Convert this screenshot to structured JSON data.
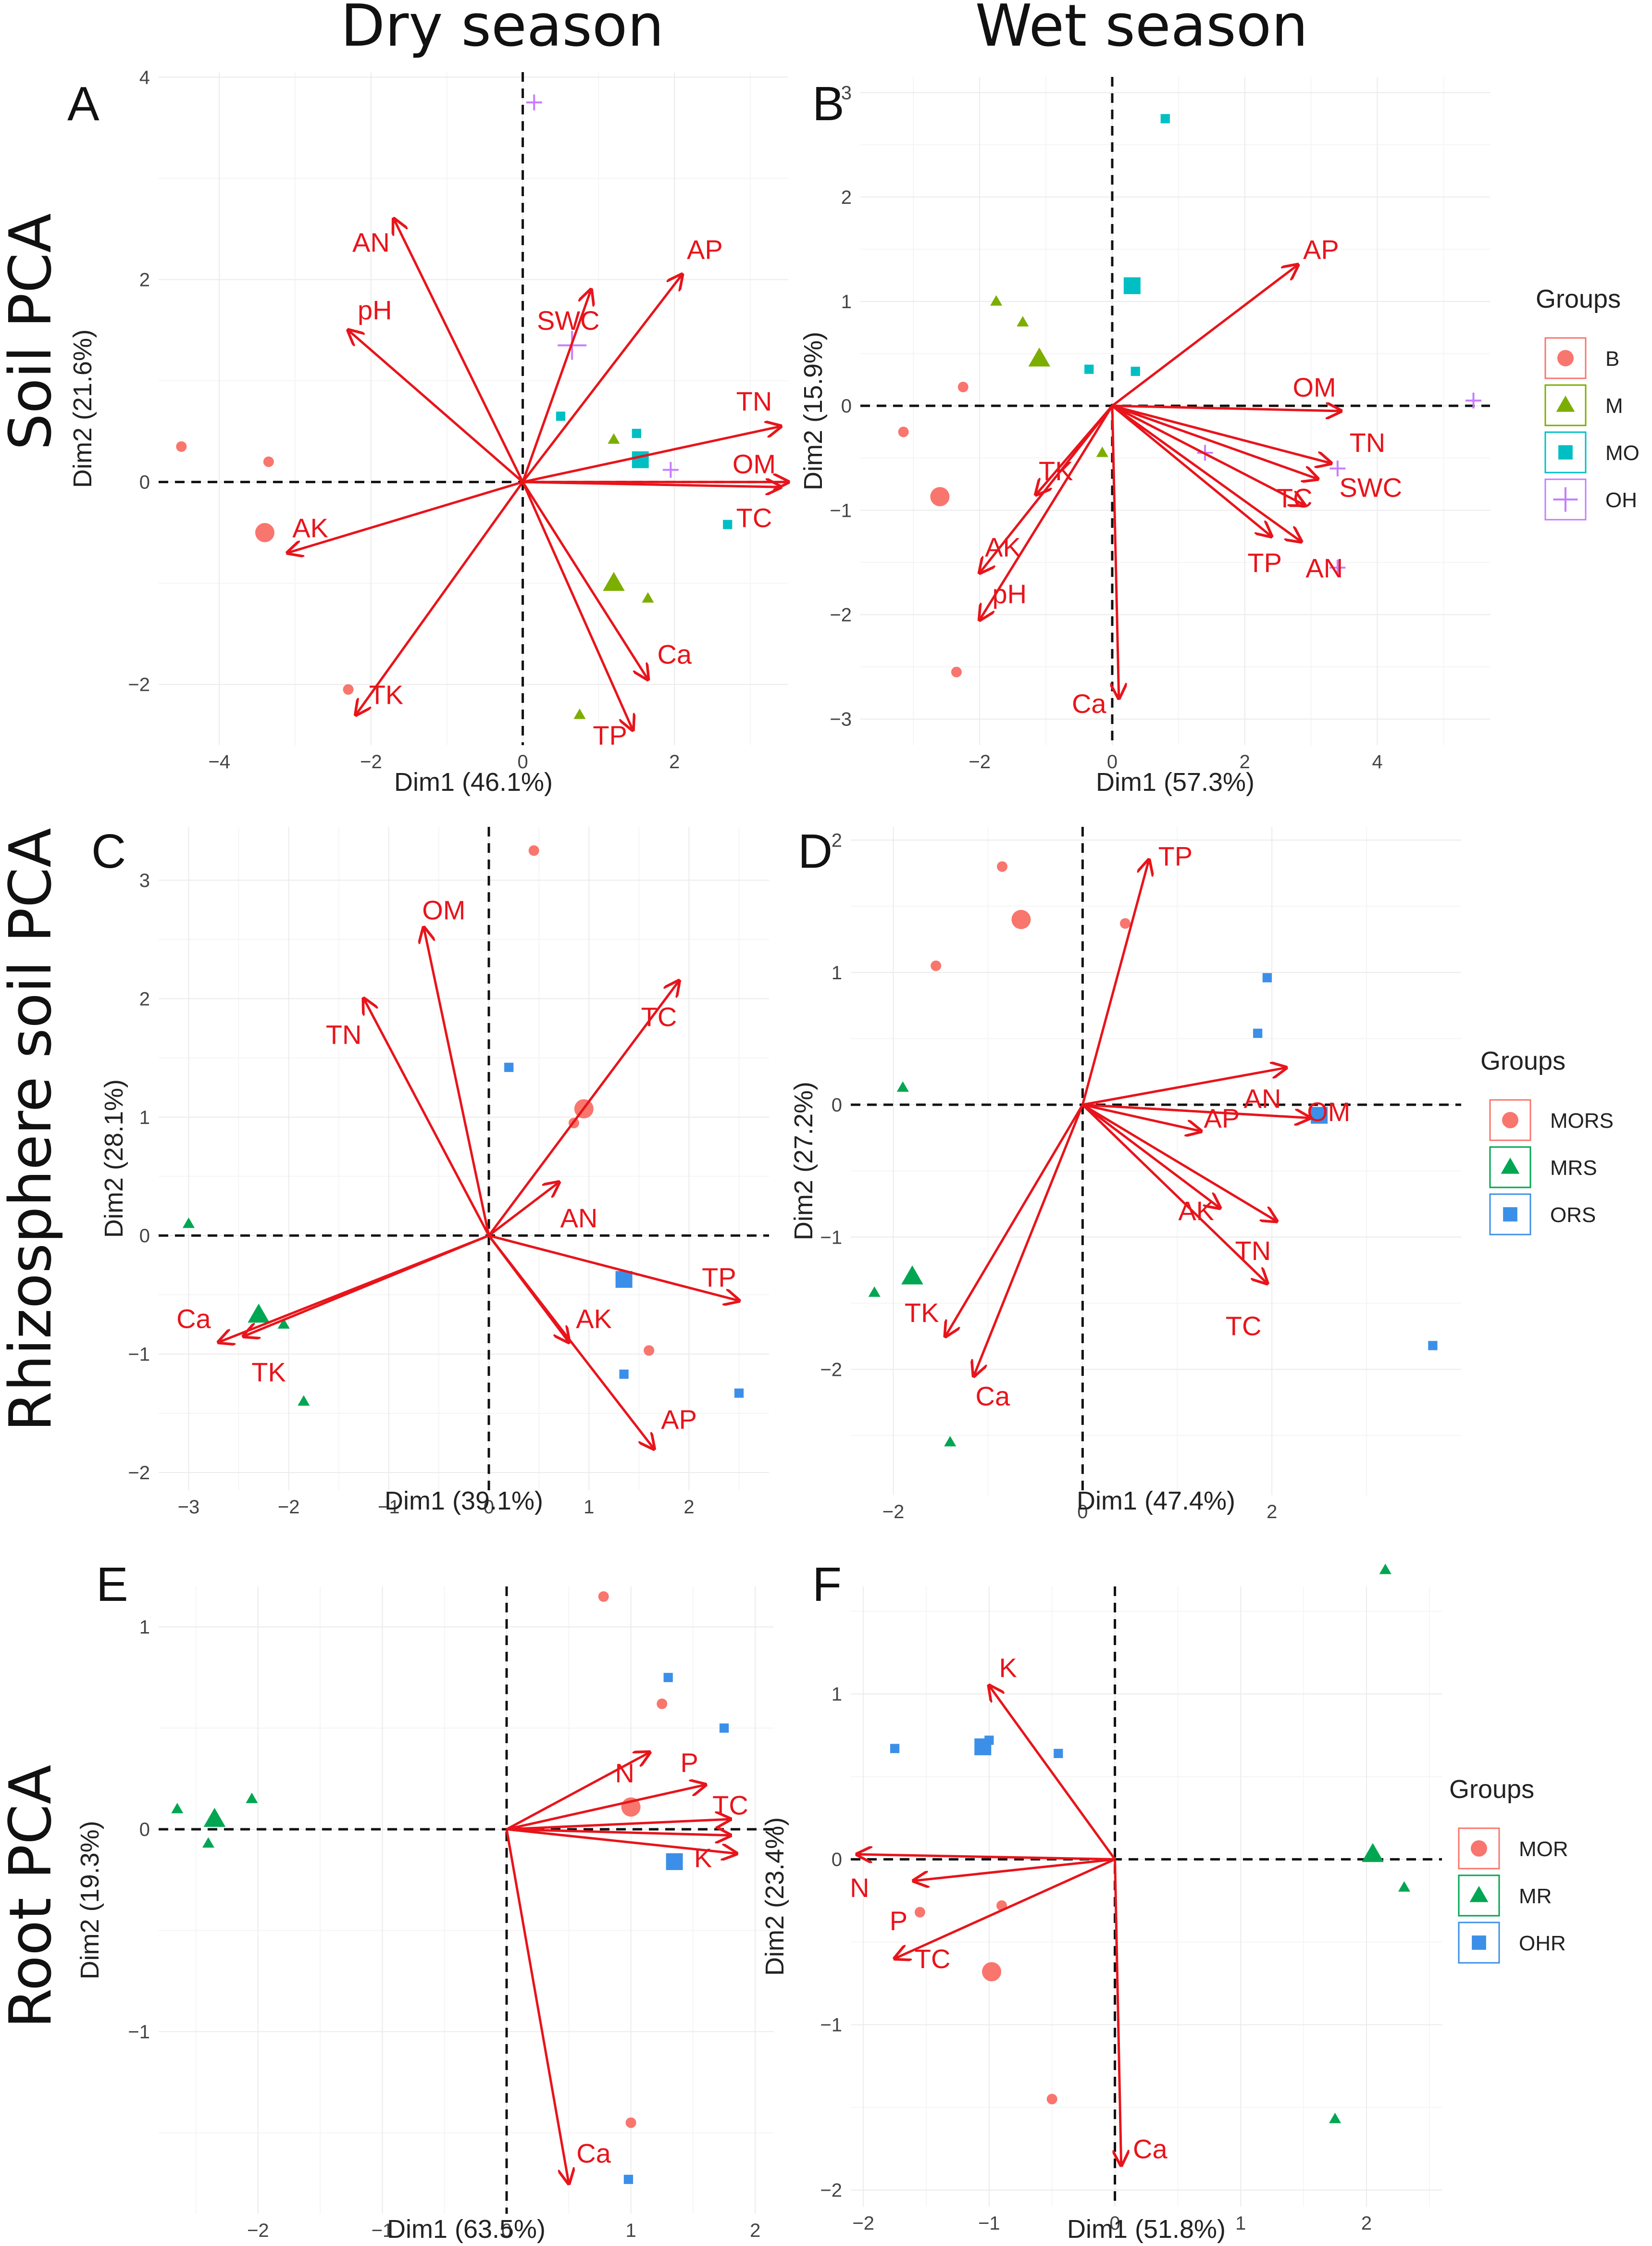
{
  "headers": {
    "dry": "Dry season",
    "wet": "Wet season"
  },
  "row_labels": {
    "soil": "Soil PCA",
    "rhizo": "Rhizosphere soil PCA",
    "root": "Root PCA"
  },
  "colors": {
    "arrow": "#e8141b",
    "B": "#f8766d",
    "M": "#7cae00",
    "MO": "#00bfc4",
    "OH": "#c77cff",
    "MORS": "#f8766d",
    "MRS": "#00a651",
    "ORS": "#3c8fe8",
    "MOR": "#f8766d",
    "MR": "#00a651",
    "OHR": "#3c8fe8"
  },
  "chart_data": [
    {
      "id": "A",
      "type": "scatter",
      "label": "A",
      "xlabel": "Dim1 (46.1%)",
      "ylabel": "Dim2 (21.6%)",
      "xlim": [
        -4.8,
        3.5
      ],
      "ylim": [
        -2.6,
        4.05
      ],
      "xticks": [
        -4,
        -2,
        0,
        2
      ],
      "yticks": [
        -2,
        0,
        2,
        4
      ],
      "legend_group": "soil",
      "arrows": [
        {
          "name": "AN",
          "x": -1.7,
          "y": 2.6,
          "lx": -2.0,
          "ly": 2.37
        },
        {
          "name": "pH",
          "x": -2.3,
          "y": 1.5,
          "lx": -1.95,
          "ly": 1.7
        },
        {
          "name": "AP",
          "x": 2.1,
          "y": 2.05,
          "lx": 2.4,
          "ly": 2.3
        },
        {
          "name": "SWC",
          "x": 0.9,
          "y": 1.9,
          "lx": 0.6,
          "ly": 1.6
        },
        {
          "name": "TN",
          "x": 3.4,
          "y": 0.55,
          "lx": 3.05,
          "ly": 0.8
        },
        {
          "name": "OM",
          "x": 3.5,
          "y": 0.0,
          "lx": 3.05,
          "ly": 0.18
        },
        {
          "name": "TC",
          "x": 3.4,
          "y": -0.05,
          "lx": 3.05,
          "ly": -0.35
        },
        {
          "name": "AK",
          "x": -3.1,
          "y": -0.7,
          "lx": -2.8,
          "ly": -0.45
        },
        {
          "name": "TK",
          "x": -2.2,
          "y": -2.3,
          "lx": -1.8,
          "ly": -2.1
        },
        {
          "name": "Ca",
          "x": 1.65,
          "y": -1.95,
          "lx": 2.0,
          "ly": -1.7
        },
        {
          "name": "TP",
          "x": 1.45,
          "y": -2.45,
          "lx": 1.15,
          "ly": -2.5
        }
      ],
      "points": [
        {
          "g": "B",
          "x": -4.5,
          "y": 0.35
        },
        {
          "g": "B",
          "x": -3.35,
          "y": 0.2
        },
        {
          "g": "B",
          "x": -3.4,
          "y": -0.5,
          "c": true
        },
        {
          "g": "B",
          "x": -2.3,
          "y": -2.05
        },
        {
          "g": "M",
          "x": 1.2,
          "y": -1.0,
          "c": true
        },
        {
          "g": "M",
          "x": 1.65,
          "y": -1.15
        },
        {
          "g": "M",
          "x": 0.75,
          "y": -2.3
        },
        {
          "g": "M",
          "x": 1.2,
          "y": 0.42
        },
        {
          "g": "MO",
          "x": 0.5,
          "y": 0.65
        },
        {
          "g": "MO",
          "x": 1.5,
          "y": 0.48
        },
        {
          "g": "MO",
          "x": 1.55,
          "y": 0.22,
          "c": true
        },
        {
          "g": "MO",
          "x": 2.7,
          "y": -0.42
        },
        {
          "g": "OH",
          "x": 0.15,
          "y": 3.75
        },
        {
          "g": "OH",
          "x": 0.65,
          "y": 1.35,
          "c": true
        },
        {
          "g": "OH",
          "x": 1.95,
          "y": 0.12
        }
      ]
    },
    {
      "id": "B",
      "type": "scatter",
      "label": "B",
      "xlabel": "Dim1 (57.3%)",
      "ylabel": "Dim2 (15.9%)",
      "xlim": [
        -3.8,
        5.7
      ],
      "ylim": [
        -3.25,
        3.15
      ],
      "xticks": [
        -2,
        0,
        2,
        4
      ],
      "yticks": [
        -3,
        -2,
        -1,
        0,
        1,
        2,
        3
      ],
      "legend_group": "soil",
      "arrows": [
        {
          "name": "AP",
          "x": 2.8,
          "y": 1.35,
          "lx": 3.15,
          "ly": 1.5
        },
        {
          "name": "OM",
          "x": 3.45,
          "y": -0.05,
          "lx": 3.05,
          "ly": 0.18
        },
        {
          "name": "TN",
          "x": 3.3,
          "y": -0.55,
          "lx": 3.85,
          "ly": -0.35
        },
        {
          "name": "SWC",
          "x": 3.1,
          "y": -0.7,
          "lx": 3.9,
          "ly": -0.78
        },
        {
          "name": "TC",
          "x": 2.9,
          "y": -0.95,
          "lx": 2.75,
          "ly": -0.88
        },
        {
          "name": "AN",
          "x": 2.85,
          "y": -1.3,
          "lx": 3.2,
          "ly": -1.55
        },
        {
          "name": "TP",
          "x": 2.4,
          "y": -1.25,
          "lx": 2.3,
          "ly": -1.5
        },
        {
          "name": "TK",
          "x": -1.15,
          "y": -0.85,
          "lx": -0.85,
          "ly": -0.62
        },
        {
          "name": "AK",
          "x": -2.0,
          "y": -1.6,
          "lx": -1.65,
          "ly": -1.35
        },
        {
          "name": "pH",
          "x": -2.0,
          "y": -2.05,
          "lx": -1.55,
          "ly": -1.8
        },
        {
          "name": "Ca",
          "x": 0.1,
          "y": -2.8,
          "lx": -0.35,
          "ly": -2.85
        }
      ],
      "points": [
        {
          "g": "B",
          "x": -2.25,
          "y": 0.18
        },
        {
          "g": "B",
          "x": -3.15,
          "y": -0.25
        },
        {
          "g": "B",
          "x": -2.6,
          "y": -0.87,
          "c": true
        },
        {
          "g": "B",
          "x": -2.35,
          "y": -2.55
        },
        {
          "g": "M",
          "x": -1.75,
          "y": 1.0
        },
        {
          "g": "M",
          "x": -1.35,
          "y": 0.8
        },
        {
          "g": "M",
          "x": -1.1,
          "y": 0.45,
          "c": true
        },
        {
          "g": "M",
          "x": -0.15,
          "y": -0.45
        },
        {
          "g": "MO",
          "x": 0.8,
          "y": 2.75
        },
        {
          "g": "MO",
          "x": 0.3,
          "y": 1.15,
          "c": true
        },
        {
          "g": "MO",
          "x": -0.35,
          "y": 0.35
        },
        {
          "g": "MO",
          "x": 0.35,
          "y": 0.33
        },
        {
          "g": "OH",
          "x": 5.45,
          "y": 0.05
        },
        {
          "g": "OH",
          "x": 1.4,
          "y": -0.45
        },
        {
          "g": "OH",
          "x": 3.4,
          "y": -0.6
        },
        {
          "g": "OH",
          "x": 3.4,
          "y": -1.55
        }
      ]
    },
    {
      "id": "C",
      "type": "scatter",
      "label": "C",
      "xlabel": "Dim1 (39.1%)",
      "ylabel": "Dim2 (28.1%)",
      "xlim": [
        -3.3,
        2.8
      ],
      "ylim": [
        -2.15,
        3.45
      ],
      "xticks": [
        -3,
        -2,
        -1,
        0,
        1,
        2
      ],
      "yticks": [
        -2,
        -1,
        0,
        1,
        2,
        3
      ],
      "legend_group": "rhizo",
      "arrows": [
        {
          "name": "OM",
          "x": -0.65,
          "y": 2.6,
          "lx": -0.45,
          "ly": 2.75
        },
        {
          "name": "TN",
          "x": -1.25,
          "y": 2.0,
          "lx": -1.45,
          "ly": 1.7
        },
        {
          "name": "TC",
          "x": 1.9,
          "y": 2.15,
          "lx": 1.7,
          "ly": 1.85
        },
        {
          "name": "AN",
          "x": 0.7,
          "y": 0.45,
          "lx": 0.9,
          "ly": 0.15
        },
        {
          "name": "TP",
          "x": 2.5,
          "y": -0.55,
          "lx": 2.3,
          "ly": -0.35
        },
        {
          "name": "AK",
          "x": 0.8,
          "y": -0.9,
          "lx": 1.05,
          "ly": -0.7
        },
        {
          "name": "AP",
          "x": 1.65,
          "y": -1.8,
          "lx": 1.9,
          "ly": -1.55
        },
        {
          "name": "Ca",
          "x": -2.7,
          "y": -0.9,
          "lx": -2.95,
          "ly": -0.7
        },
        {
          "name": "TK",
          "x": -2.45,
          "y": -0.85,
          "lx": -2.2,
          "ly": -1.15
        }
      ],
      "points": [
        {
          "g": "MORS",
          "x": 0.45,
          "y": 3.25
        },
        {
          "g": "MORS",
          "x": 0.95,
          "y": 1.07,
          "c": true
        },
        {
          "g": "MORS",
          "x": 0.85,
          "y": 0.95
        },
        {
          "g": "MORS",
          "x": 1.6,
          "y": -0.97
        },
        {
          "g": "MRS",
          "x": -3.0,
          "y": 0.1
        },
        {
          "g": "MRS",
          "x": -2.3,
          "y": -0.67,
          "c": true
        },
        {
          "g": "MRS",
          "x": -2.05,
          "y": -0.75
        },
        {
          "g": "MRS",
          "x": -1.85,
          "y": -1.4
        },
        {
          "g": "ORS",
          "x": 0.2,
          "y": 1.42
        },
        {
          "g": "ORS",
          "x": 1.35,
          "y": -0.37,
          "c": true
        },
        {
          "g": "ORS",
          "x": 1.35,
          "y": -1.17
        },
        {
          "g": "ORS",
          "x": 2.5,
          "y": -1.33
        }
      ]
    },
    {
      "id": "D",
      "type": "scatter",
      "label": "D",
      "xlabel": "Dim1 (47.4%)",
      "ylabel": "Dim2 (27.2%)",
      "xlim": [
        -2.45,
        4.0
      ],
      "ylim": [
        -2.95,
        2.1
      ],
      "xticks": [
        -2,
        0,
        2
      ],
      "yticks": [
        -2,
        -1,
        0,
        1,
        2
      ],
      "legend_group": "rhizo",
      "arrows": [
        {
          "name": "TP",
          "x": 0.7,
          "y": 1.85,
          "lx": 0.98,
          "ly": 1.88
        },
        {
          "name": "AN",
          "x": 2.15,
          "y": 0.28,
          "lx": 1.9,
          "ly": 0.05
        },
        {
          "name": "OM",
          "x": 2.4,
          "y": -0.1,
          "lx": 2.6,
          "ly": -0.05
        },
        {
          "name": "AP",
          "x": 1.25,
          "y": -0.2,
          "lx": 1.47,
          "ly": -0.1
        },
        {
          "name": "AK",
          "x": 1.45,
          "y": -0.78,
          "lx": 1.2,
          "ly": -0.8
        },
        {
          "name": "TN",
          "x": 2.05,
          "y": -0.88,
          "lx": 1.8,
          "ly": -1.1
        },
        {
          "name": "TC",
          "x": 1.95,
          "y": -1.35,
          "lx": 1.7,
          "ly": -1.67
        },
        {
          "name": "TK",
          "x": -1.45,
          "y": -1.75,
          "lx": -1.7,
          "ly": -1.57
        },
        {
          "name": "Ca",
          "x": -1.15,
          "y": -2.05,
          "lx": -0.95,
          "ly": -2.2
        }
      ],
      "points": [
        {
          "g": "MORS",
          "x": -0.85,
          "y": 1.8
        },
        {
          "g": "MORS",
          "x": -0.65,
          "y": 1.4,
          "c": true
        },
        {
          "g": "MORS",
          "x": -1.55,
          "y": 1.05
        },
        {
          "g": "MORS",
          "x": 0.45,
          "y": 1.37
        },
        {
          "g": "MRS",
          "x": -1.9,
          "y": 0.13
        },
        {
          "g": "MRS",
          "x": -1.8,
          "y": -1.3,
          "c": true
        },
        {
          "g": "MRS",
          "x": -2.2,
          "y": -1.42
        },
        {
          "g": "MRS",
          "x": -1.4,
          "y": -2.55
        },
        {
          "g": "ORS",
          "x": 1.95,
          "y": 0.96
        },
        {
          "g": "ORS",
          "x": 1.85,
          "y": 0.54
        },
        {
          "g": "ORS",
          "x": 2.5,
          "y": -0.08,
          "c": true
        },
        {
          "g": "ORS",
          "x": 3.7,
          "y": -1.82
        }
      ]
    },
    {
      "id": "E",
      "type": "scatter",
      "label": "E",
      "xlabel": "Dim1 (63.5%)",
      "ylabel": "Dim2 (19.3%)",
      "xlim": [
        -2.8,
        2.15
      ],
      "ylim": [
        -1.9,
        1.2
      ],
      "xticks": [
        -2,
        -1,
        0,
        1,
        2
      ],
      "yticks": [
        -1,
        0,
        1
      ],
      "legend_group": "root",
      "arrows": [
        {
          "name": "N",
          "x": 1.15,
          "y": 0.38,
          "lx": 0.95,
          "ly": 0.28
        },
        {
          "name": "P",
          "x": 1.6,
          "y": 0.22,
          "lx": 1.47,
          "ly": 0.33
        },
        {
          "name": "TC",
          "x": 1.8,
          "y": 0.05,
          "lx": 1.8,
          "ly": 0.12
        },
        {
          "name": "TC2",
          "x": 1.8,
          "y": -0.03,
          "lx": 0,
          "ly": 0,
          "hidden": true
        },
        {
          "name": "K",
          "x": 1.85,
          "y": -0.12,
          "lx": 1.58,
          "ly": -0.14
        },
        {
          "name": "Ca",
          "x": 0.5,
          "y": -1.75,
          "lx": 0.7,
          "ly": -1.6
        }
      ],
      "points": [
        {
          "g": "MOR",
          "x": 0.78,
          "y": 1.15
        },
        {
          "g": "MOR",
          "x": 1.25,
          "y": 0.62
        },
        {
          "g": "MOR",
          "x": 1.0,
          "y": 0.11,
          "c": true
        },
        {
          "g": "MOR",
          "x": 1.0,
          "y": -1.45
        },
        {
          "g": "MR",
          "x": -2.65,
          "y": 0.1
        },
        {
          "g": "MR",
          "x": -2.35,
          "y": 0.05,
          "c": true
        },
        {
          "g": "MR",
          "x": -2.05,
          "y": 0.15
        },
        {
          "g": "MR",
          "x": -2.4,
          "y": -0.07
        },
        {
          "g": "OHR",
          "x": 1.3,
          "y": 0.75
        },
        {
          "g": "OHR",
          "x": 1.75,
          "y": 0.5
        },
        {
          "g": "OHR",
          "x": 1.35,
          "y": -0.16,
          "c": true
        },
        {
          "g": "OHR",
          "x": 0.98,
          "y": -1.73
        }
      ]
    },
    {
      "id": "F",
      "type": "scatter",
      "label": "F",
      "xlabel": "Dim1 (51.8%)",
      "ylabel": "Dim2 (23.4%)",
      "xlim": [
        -2.1,
        2.6
      ],
      "ylim": [
        -2.1,
        1.65
      ],
      "xticks": [
        -2,
        -1,
        0,
        1,
        2
      ],
      "yticks": [
        -2,
        -1,
        0,
        1
      ],
      "legend_group": "root",
      "arrows": [
        {
          "name": "K",
          "x": -1.0,
          "y": 1.05,
          "lx": -0.85,
          "ly": 1.16
        },
        {
          "name": "N",
          "x": -2.05,
          "y": 0.03,
          "lx": -2.03,
          "ly": -0.17
        },
        {
          "name": "P",
          "x": -1.6,
          "y": -0.13,
          "lx": -1.72,
          "ly": -0.37
        },
        {
          "name": "TC",
          "x": -1.75,
          "y": -0.6,
          "lx": -1.45,
          "ly": -0.6
        },
        {
          "name": "Ca",
          "x": 0.05,
          "y": -1.85,
          "lx": 0.28,
          "ly": -1.75
        }
      ],
      "points": [
        {
          "g": "MOR",
          "x": -1.55,
          "y": -0.32
        },
        {
          "g": "MOR",
          "x": -0.9,
          "y": -0.28
        },
        {
          "g": "MOR",
          "x": -0.98,
          "y": -0.68,
          "c": true
        },
        {
          "g": "MOR",
          "x": -0.5,
          "y": -1.45
        },
        {
          "g": "MR",
          "x": 2.15,
          "y": 1.75
        },
        {
          "g": "MR",
          "x": 2.05,
          "y": 0.03,
          "c": true
        },
        {
          "g": "MR",
          "x": 2.3,
          "y": -0.17
        },
        {
          "g": "MR",
          "x": 1.75,
          "y": -1.57
        },
        {
          "g": "OHR",
          "x": -1.75,
          "y": 0.67
        },
        {
          "g": "OHR",
          "x": -1.05,
          "y": 0.68,
          "c": true
        },
        {
          "g": "OHR",
          "x": -1.0,
          "y": 0.72
        },
        {
          "g": "OHR",
          "x": -0.45,
          "y": 0.64
        }
      ]
    }
  ],
  "legends": {
    "soil": {
      "title": "Groups",
      "items": [
        {
          "g": "B",
          "label": "B",
          "shape": "circle"
        },
        {
          "g": "M",
          "label": "M",
          "shape": "triangle"
        },
        {
          "g": "MO",
          "label": "MO",
          "shape": "square"
        },
        {
          "g": "OH",
          "label": "OH",
          "shape": "plus"
        }
      ]
    },
    "rhizo": {
      "title": "Groups",
      "items": [
        {
          "g": "MORS",
          "label": "MORS",
          "shape": "circle"
        },
        {
          "g": "MRS",
          "label": "MRS",
          "shape": "triangle"
        },
        {
          "g": "ORS",
          "label": "ORS",
          "shape": "square"
        }
      ]
    },
    "root": {
      "title": "Groups",
      "items": [
        {
          "g": "MOR",
          "label": "MOR",
          "shape": "circle"
        },
        {
          "g": "MR",
          "label": "MR",
          "shape": "triangle"
        },
        {
          "g": "OHR",
          "label": "OHR",
          "shape": "square"
        }
      ]
    }
  },
  "shapes": {
    "B": "circle",
    "M": "triangle",
    "MO": "square",
    "OH": "plus",
    "MORS": "circle",
    "MRS": "triangle",
    "ORS": "square",
    "MOR": "circle",
    "MR": "triangle",
    "OHR": "square"
  }
}
